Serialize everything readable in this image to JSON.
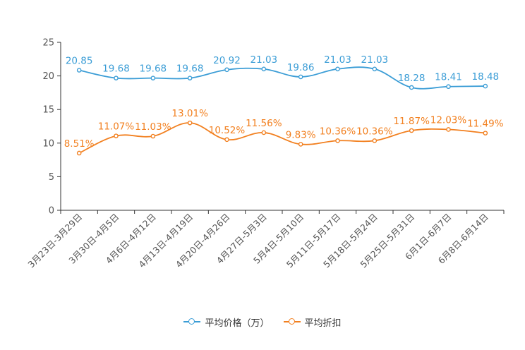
{
  "chart_data": {
    "type": "line",
    "title": "",
    "xlabel": "",
    "ylabel": "",
    "ylim": [
      0,
      25
    ],
    "yticks": [
      0,
      5,
      10,
      15,
      20,
      25
    ],
    "categories": [
      "3月23日-3月29日",
      "3月30日-4月5日",
      "4月6日-4月12日",
      "4月13日-4月19日",
      "4月20日-4月26日",
      "4月27日-5月3日",
      "5月4日-5月10日",
      "5月11日-5月17日",
      "5月18日-5月24日",
      "5月25日-5月31日",
      "6月1日-6月7日",
      "6月8日-6月14日"
    ],
    "series": [
      {
        "name": "平均价格（万）",
        "color": "#3b9dd6",
        "values": [
          20.85,
          19.68,
          19.68,
          19.68,
          20.92,
          21.03,
          19.86,
          21.03,
          21.03,
          18.28,
          18.41,
          18.48
        ],
        "labels": [
          "20.85",
          "19.68",
          "19.68",
          "19.68",
          "20.92",
          "21.03",
          "19.86",
          "21.03",
          "21.03",
          "18.28",
          "18.41",
          "18.48"
        ]
      },
      {
        "name": "平均折扣",
        "color": "#f28020",
        "values": [
          8.51,
          11.07,
          11.03,
          13.01,
          10.52,
          11.56,
          9.83,
          10.36,
          10.36,
          11.87,
          12.03,
          11.49
        ],
        "labels": [
          "8.51%",
          "11.07%",
          "11.03%",
          "13.01%",
          "10.52%",
          "11.56%",
          "9.83%",
          "10.36%",
          "10.36%",
          "11.87%",
          "12.03%",
          "11.49%"
        ]
      }
    ],
    "legend_position": "bottom-center",
    "grid": false
  }
}
